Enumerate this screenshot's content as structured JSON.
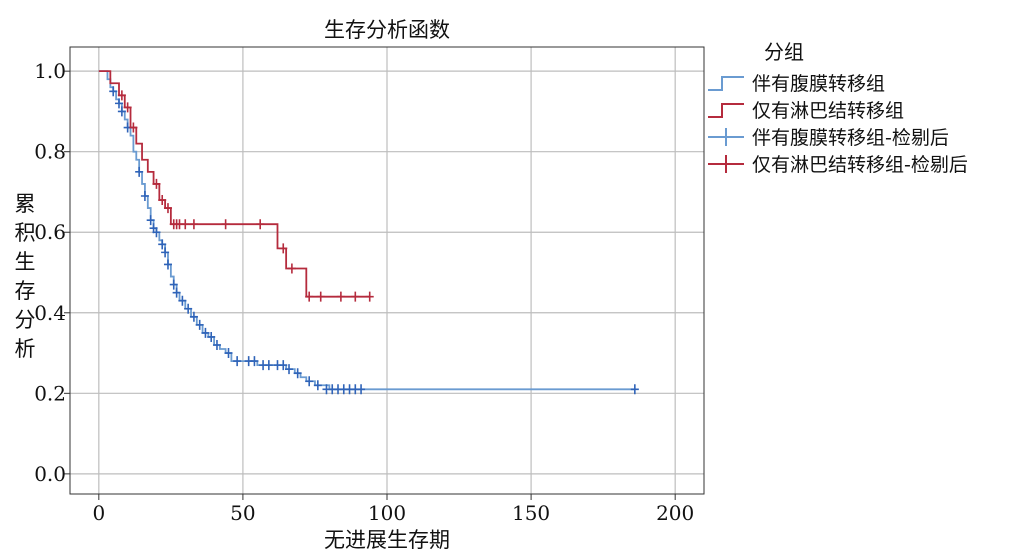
{
  "chart_data": {
    "type": "line",
    "step": true,
    "title": "生存分析函数",
    "xlabel": "无进展生存期",
    "ylabel": "累积生存分析",
    "xlim": [
      -10,
      210
    ],
    "ylim": [
      -0.05,
      1.06
    ],
    "xticks": [
      0,
      50,
      100,
      150,
      200
    ],
    "yticks": [
      0.0,
      0.2,
      0.4,
      0.6,
      0.8,
      1.0
    ],
    "ytick_labels": [
      "0.0",
      "0.2",
      "0.4",
      "0.6",
      "0.8",
      "1.0"
    ],
    "grid": true,
    "legend": {
      "title": "分组",
      "position": "right",
      "entries": [
        {
          "label": "伴有腹膜转移组",
          "kind": "line",
          "color": "#6a9bd1"
        },
        {
          "label": "仅有淋巴结转移组",
          "kind": "line",
          "color": "#b52b3d"
        },
        {
          "label": "伴有腹膜转移组-检剔后",
          "kind": "censor",
          "color": "#6a9bd1"
        },
        {
          "label": "仅有淋巴结转移组-检剔后",
          "kind": "censor",
          "color": "#b52b3d"
        }
      ]
    },
    "series": [
      {
        "name": "伴有腹膜转移组",
        "color": "#6a9bd1",
        "marker_color": "#2f63b8",
        "x": [
          0,
          3,
          4,
          5,
          6,
          7,
          8,
          9,
          10,
          11,
          12,
          13,
          14,
          15,
          16,
          17,
          18,
          19,
          20,
          21,
          22,
          23,
          24,
          25,
          26,
          27,
          28,
          30,
          32,
          34,
          36,
          38,
          40,
          42,
          44,
          46,
          50,
          55,
          60,
          65,
          68,
          70,
          72,
          75,
          80,
          90,
          186
        ],
        "y": [
          1.0,
          0.98,
          0.96,
          0.95,
          0.93,
          0.92,
          0.9,
          0.88,
          0.86,
          0.84,
          0.8,
          0.78,
          0.75,
          0.72,
          0.69,
          0.66,
          0.63,
          0.61,
          0.6,
          0.58,
          0.57,
          0.55,
          0.52,
          0.49,
          0.47,
          0.45,
          0.43,
          0.41,
          0.39,
          0.37,
          0.35,
          0.34,
          0.32,
          0.31,
          0.3,
          0.28,
          0.28,
          0.27,
          0.27,
          0.26,
          0.25,
          0.24,
          0.23,
          0.22,
          0.21,
          0.21,
          0.21
        ],
        "censored": [
          {
            "x": 5,
            "y": 0.95
          },
          {
            "x": 7,
            "y": 0.92
          },
          {
            "x": 8,
            "y": 0.9
          },
          {
            "x": 10,
            "y": 0.86
          },
          {
            "x": 14,
            "y": 0.75
          },
          {
            "x": 16,
            "y": 0.69
          },
          {
            "x": 18,
            "y": 0.63
          },
          {
            "x": 19,
            "y": 0.61
          },
          {
            "x": 20,
            "y": 0.6
          },
          {
            "x": 22,
            "y": 0.57
          },
          {
            "x": 23,
            "y": 0.55
          },
          {
            "x": 24,
            "y": 0.52
          },
          {
            "x": 26,
            "y": 0.47
          },
          {
            "x": 27,
            "y": 0.45
          },
          {
            "x": 29,
            "y": 0.43
          },
          {
            "x": 31,
            "y": 0.41
          },
          {
            "x": 33,
            "y": 0.39
          },
          {
            "x": 35,
            "y": 0.37
          },
          {
            "x": 37,
            "y": 0.35
          },
          {
            "x": 39,
            "y": 0.34
          },
          {
            "x": 41,
            "y": 0.32
          },
          {
            "x": 45,
            "y": 0.3
          },
          {
            "x": 48,
            "y": 0.28
          },
          {
            "x": 52,
            "y": 0.28
          },
          {
            "x": 54,
            "y": 0.28
          },
          {
            "x": 57,
            "y": 0.27
          },
          {
            "x": 59,
            "y": 0.27
          },
          {
            "x": 62,
            "y": 0.27
          },
          {
            "x": 64,
            "y": 0.27
          },
          {
            "x": 66,
            "y": 0.26
          },
          {
            "x": 69,
            "y": 0.25
          },
          {
            "x": 73,
            "y": 0.23
          },
          {
            "x": 76,
            "y": 0.22
          },
          {
            "x": 79,
            "y": 0.21
          },
          {
            "x": 81,
            "y": 0.21
          },
          {
            "x": 83,
            "y": 0.21
          },
          {
            "x": 85,
            "y": 0.21
          },
          {
            "x": 87,
            "y": 0.21
          },
          {
            "x": 89,
            "y": 0.21
          },
          {
            "x": 91,
            "y": 0.21
          },
          {
            "x": 186,
            "y": 0.21
          }
        ]
      },
      {
        "name": "仅有淋巴结转移组",
        "color": "#b52b3d",
        "marker_color": "#b52b3d",
        "x": [
          0,
          4,
          7,
          9,
          11,
          13,
          15,
          17,
          19,
          21,
          23,
          25,
          52,
          62,
          65,
          72,
          94
        ],
        "y": [
          1.0,
          0.97,
          0.94,
          0.91,
          0.86,
          0.82,
          0.78,
          0.75,
          0.72,
          0.68,
          0.66,
          0.62,
          0.62,
          0.56,
          0.51,
          0.44,
          0.44
        ],
        "censored": [
          {
            "x": 8,
            "y": 0.94
          },
          {
            "x": 10,
            "y": 0.91
          },
          {
            "x": 12,
            "y": 0.86
          },
          {
            "x": 20,
            "y": 0.72
          },
          {
            "x": 22,
            "y": 0.68
          },
          {
            "x": 24,
            "y": 0.66
          },
          {
            "x": 26,
            "y": 0.62
          },
          {
            "x": 27,
            "y": 0.62
          },
          {
            "x": 28,
            "y": 0.62
          },
          {
            "x": 30,
            "y": 0.62
          },
          {
            "x": 33,
            "y": 0.62
          },
          {
            "x": 44,
            "y": 0.62
          },
          {
            "x": 56,
            "y": 0.62
          },
          {
            "x": 64,
            "y": 0.56
          },
          {
            "x": 67,
            "y": 0.51
          },
          {
            "x": 73,
            "y": 0.44
          },
          {
            "x": 77,
            "y": 0.44
          },
          {
            "x": 84,
            "y": 0.44
          },
          {
            "x": 89,
            "y": 0.44
          },
          {
            "x": 94,
            "y": 0.44
          }
        ]
      }
    ]
  }
}
